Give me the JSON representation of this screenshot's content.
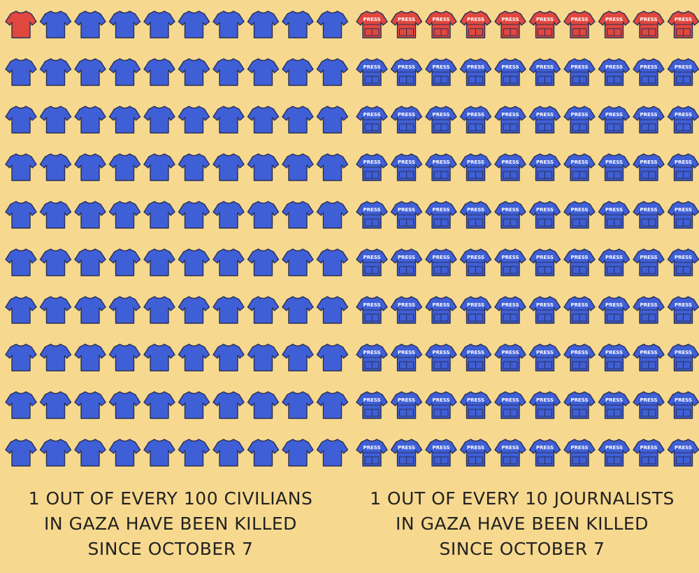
{
  "chart_data": [
    {
      "type": "pictograph",
      "icon": "t-shirt-icon",
      "grid": [
        10,
        10
      ],
      "total": 100,
      "highlighted": 1,
      "highlight_color": "#e0473e",
      "base_color": "#3f5fd6",
      "caption": [
        "1 out of every 100 civilians",
        "in Gaza have been killed",
        "since October 7"
      ]
    },
    {
      "type": "pictograph",
      "icon": "press-vest-icon",
      "icon_text": "PRESS",
      "grid": [
        10,
        10
      ],
      "total": 100,
      "highlighted": 10,
      "highlight_color": "#e0473e",
      "base_color": "#3f5fd6",
      "caption": [
        "1 out of every 10 journalists",
        "in Gaza have been killed",
        "since October 7"
      ]
    }
  ],
  "colors": {
    "background": "#f6d98f",
    "outline": "#2a2f55"
  }
}
